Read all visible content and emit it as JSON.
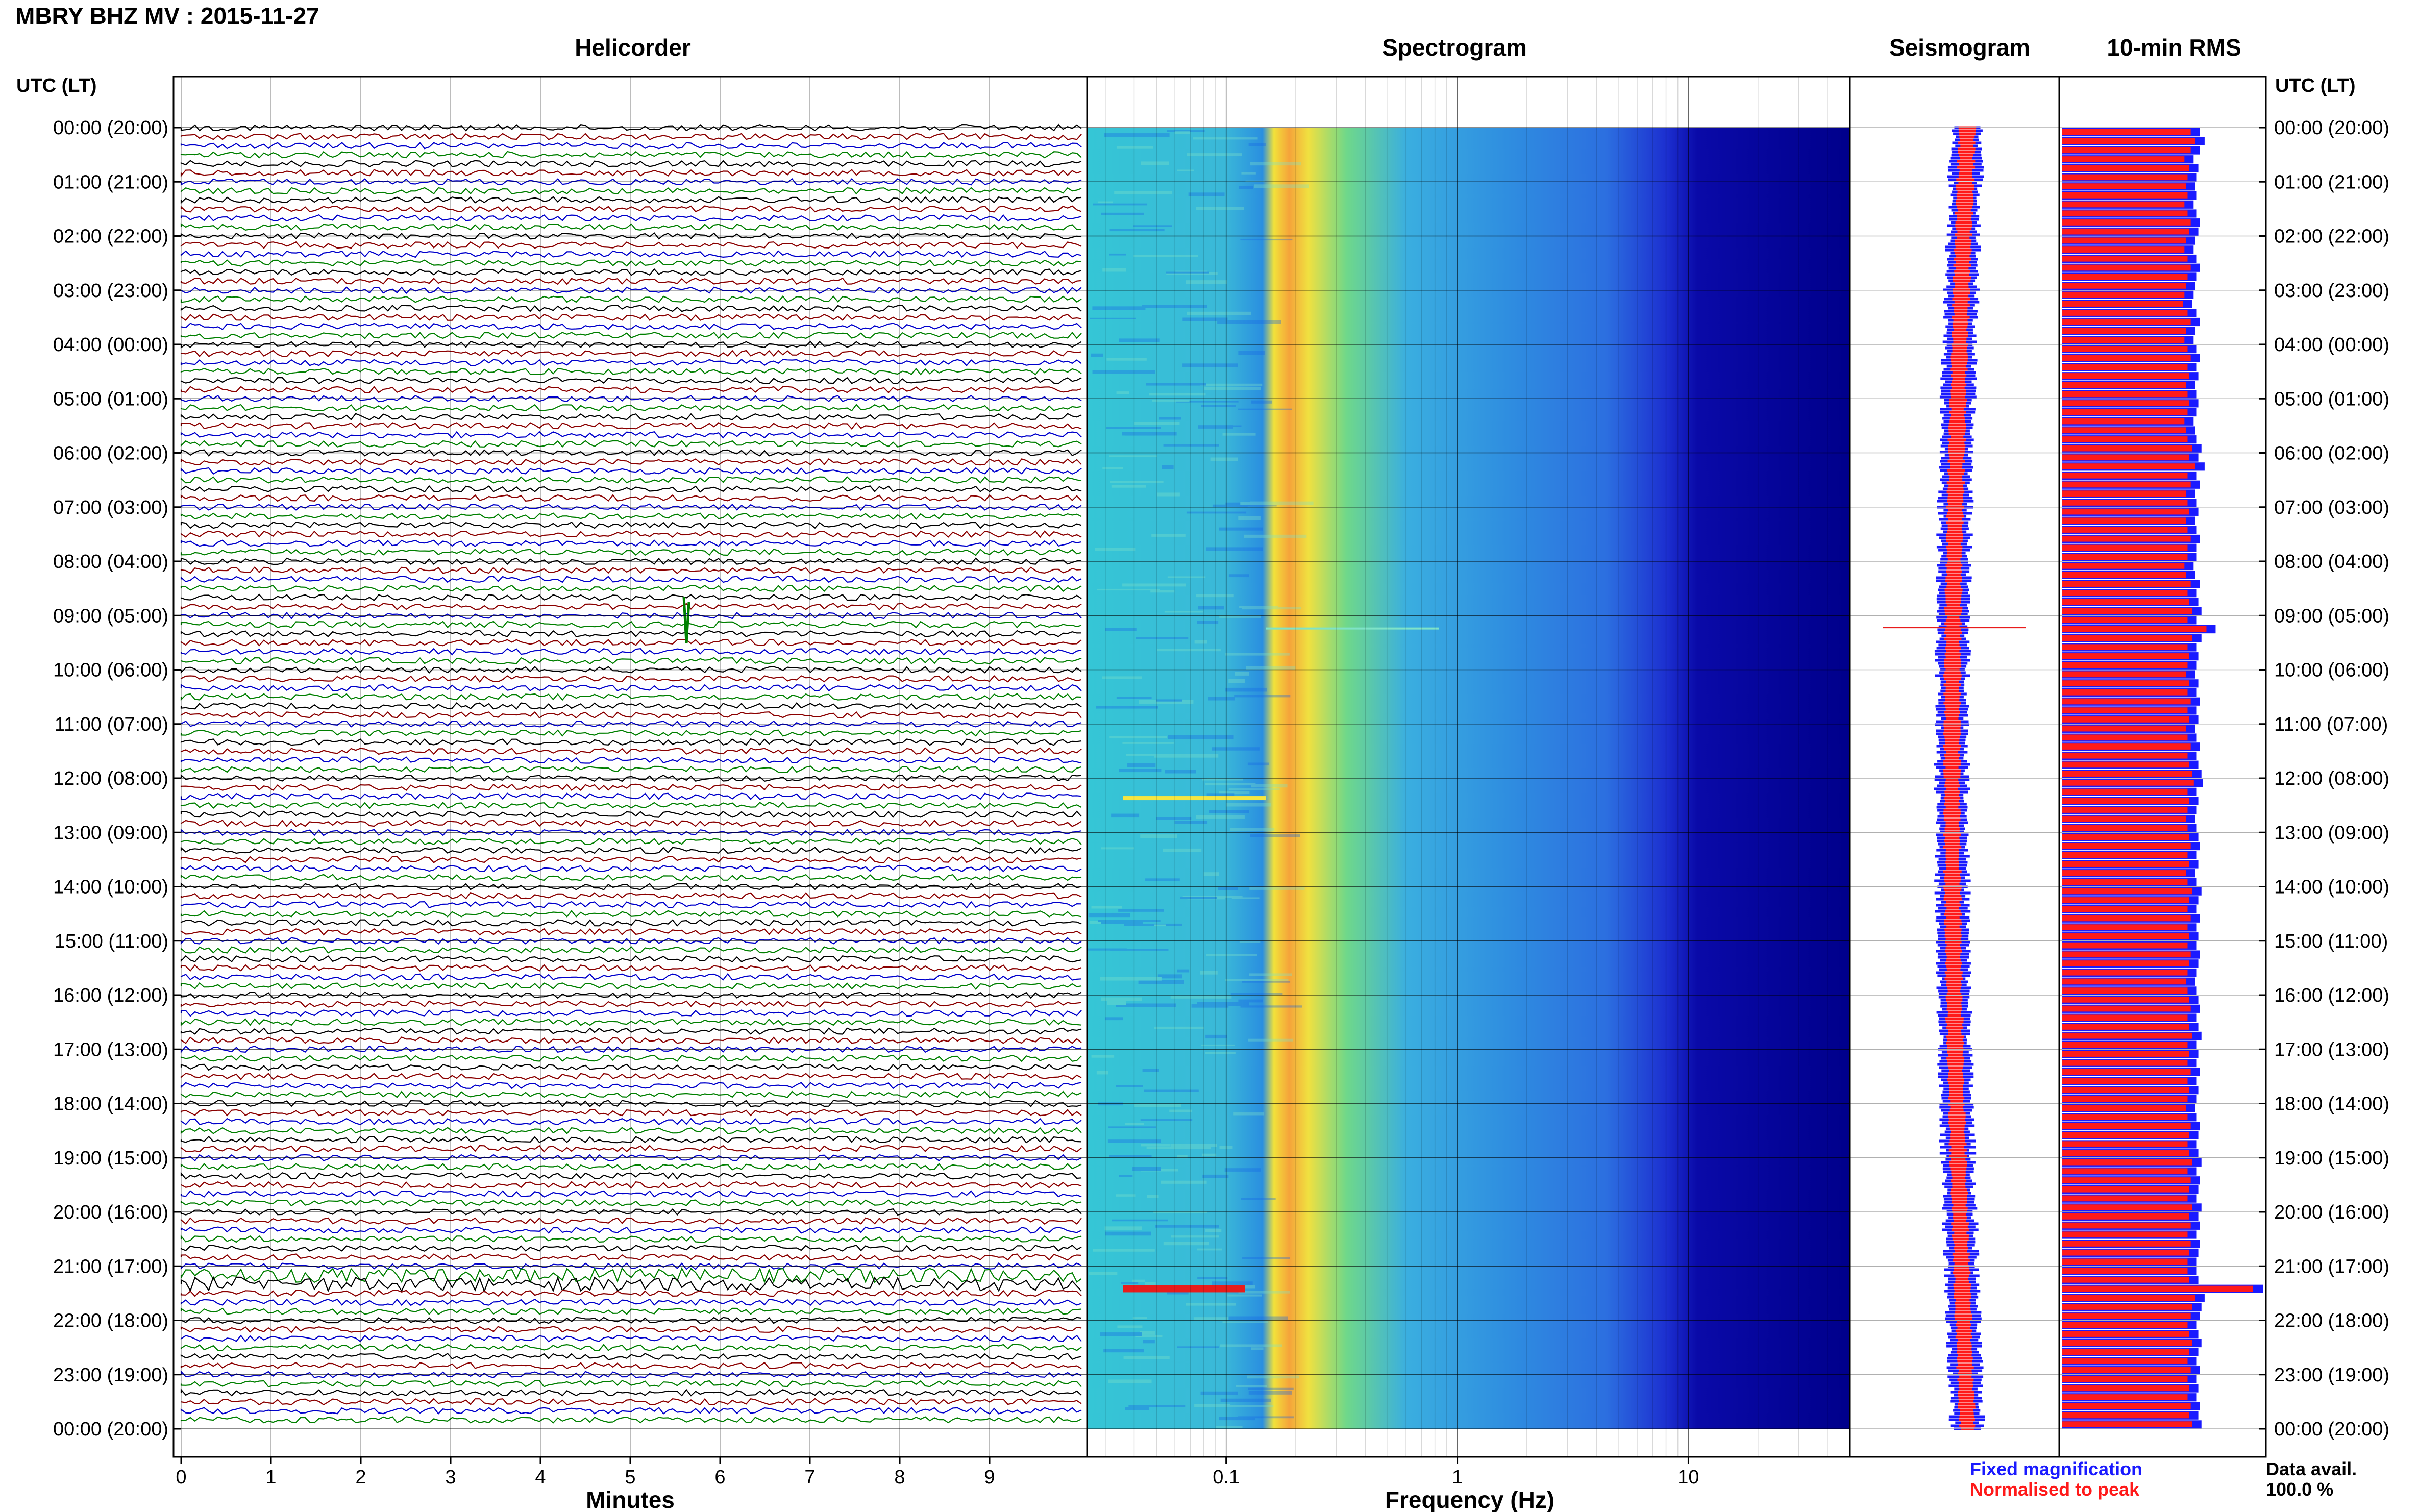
{
  "title": "MBRY BHZ MV : 2015-11-27",
  "panels": {
    "helicorder": "Helicorder",
    "spectrogram": "Spectrogram",
    "seismogram": "Seismogram",
    "rms": "10-min RMS"
  },
  "time_axis_label": "UTC (LT)",
  "time_labels": [
    "00:00 (20:00)",
    "01:00 (21:00)",
    "02:00 (22:00)",
    "03:00 (23:00)",
    "04:00 (00:00)",
    "05:00 (01:00)",
    "06:00 (02:00)",
    "07:00 (03:00)",
    "08:00 (04:00)",
    "09:00 (05:00)",
    "10:00 (06:00)",
    "11:00 (07:00)",
    "12:00 (08:00)",
    "13:00 (09:00)",
    "14:00 (10:00)",
    "15:00 (11:00)",
    "16:00 (12:00)",
    "17:00 (13:00)",
    "18:00 (14:00)",
    "19:00 (15:00)",
    "20:00 (16:00)",
    "21:00 (17:00)",
    "22:00 (18:00)",
    "23:00 (19:00)",
    "00:00 (20:00)"
  ],
  "helicorder_axis": {
    "xlabel": "Minutes",
    "ticks": [
      "0",
      "1",
      "2",
      "3",
      "4",
      "5",
      "6",
      "7",
      "8",
      "9"
    ]
  },
  "spectrogram_axis": {
    "xlabel": "Frequency (Hz)",
    "ticks": [
      "0.1",
      "1",
      "10"
    ]
  },
  "legend": {
    "fixed": "Fixed magnification",
    "normalised": "Normalised to peak"
  },
  "data_avail": {
    "label": "Data avail.",
    "value": "100.0 %"
  },
  "colors": {
    "trace_cycle": [
      "#000000",
      "#8b0000",
      "#0000cc",
      "#008000"
    ],
    "fixed": "#1a1aff",
    "normalised": "#ff1a1a",
    "spectro_bg": "#00008b"
  },
  "chart_data": [
    {
      "type": "line",
      "title": "Helicorder",
      "xlabel": "Minutes",
      "xlim": [
        0,
        10
      ],
      "rows_per_hour": 6,
      "row_span_minutes": 10,
      "events": [
        {
          "time_utc": "09:10",
          "minute": 5.5,
          "note": "spike"
        },
        {
          "time_utc": "21:20",
          "minute": 0,
          "note": "high-amplitude segment"
        }
      ]
    },
    {
      "type": "heatmap",
      "title": "Spectrogram",
      "xlabel": "Frequency (Hz)",
      "xscale": "log",
      "xlim": [
        0.025,
        50
      ],
      "dominant_band_hz": [
        0.15,
        0.3
      ]
    },
    {
      "type": "line",
      "title": "Seismogram",
      "series": [
        {
          "name": "Fixed magnification"
        },
        {
          "name": "Normalised to peak"
        }
      ]
    },
    {
      "type": "bar",
      "title": "10-min RMS",
      "orientation": "horizontal",
      "series": [
        {
          "name": "Fixed magnification"
        },
        {
          "name": "Normalised to peak"
        }
      ],
      "values": [
        0.82,
        0.85,
        0.82,
        0.78,
        0.81,
        0.8,
        0.79,
        0.8,
        0.78,
        0.8,
        0.82,
        0.81,
        0.79,
        0.78,
        0.8,
        0.82,
        0.8,
        0.79,
        0.78,
        0.77,
        0.8,
        0.82,
        0.79,
        0.78,
        0.8,
        0.82,
        0.8,
        0.81,
        0.79,
        0.8,
        0.81,
        0.8,
        0.78,
        0.79,
        0.8,
        0.83,
        0.81,
        0.85,
        0.8,
        0.82,
        0.79,
        0.8,
        0.81,
        0.79,
        0.8,
        0.82,
        0.8,
        0.8,
        0.78,
        0.79,
        0.82,
        0.8,
        0.81,
        0.83,
        0.8,
        0.92,
        0.83,
        0.8,
        0.81,
        0.8,
        0.79,
        0.81,
        0.8,
        0.82,
        0.8,
        0.81,
        0.79,
        0.8,
        0.82,
        0.8,
        0.81,
        0.83,
        0.84,
        0.8,
        0.81,
        0.8,
        0.79,
        0.8,
        0.81,
        0.82,
        0.8,
        0.81,
        0.79,
        0.8,
        0.83,
        0.81,
        0.8,
        0.82,
        0.8,
        0.81,
        0.8,
        0.82,
        0.81,
        0.8,
        0.79,
        0.8,
        0.81,
        0.82,
        0.8,
        0.81,
        0.83,
        0.8,
        0.81,
        0.8,
        0.82,
        0.8,
        0.81,
        0.8,
        0.79,
        0.8,
        0.82,
        0.81,
        0.8,
        0.81,
        0.83,
        0.8,
        0.82,
        0.81,
        0.8,
        0.83,
        0.81,
        0.82,
        0.8,
        0.82,
        0.81,
        0.8,
        0.8,
        0.81,
        1.0,
        0.85,
        0.83,
        0.82,
        0.8,
        0.81,
        0.83,
        0.81,
        0.8,
        0.82,
        0.8,
        0.81,
        0.8,
        0.82,
        0.81,
        0.83
      ]
    }
  ]
}
